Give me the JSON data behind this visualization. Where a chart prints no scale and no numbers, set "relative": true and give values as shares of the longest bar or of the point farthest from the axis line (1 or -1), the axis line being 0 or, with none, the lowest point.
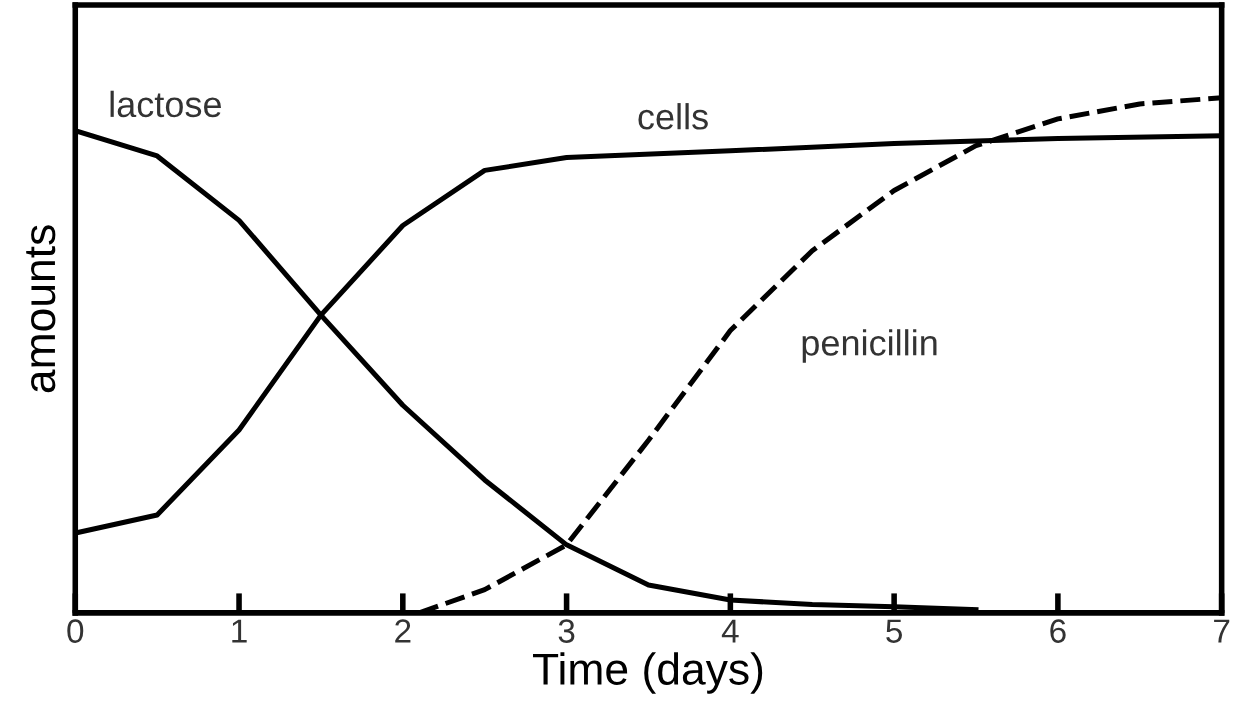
{
  "chart_data": {
    "type": "line",
    "relative": true,
    "xlabel": "Time (days)",
    "ylabel": "amounts",
    "xlim": [
      0,
      7
    ],
    "xticks": [
      0,
      1,
      2,
      3,
      4,
      5,
      6,
      7
    ],
    "grid": false,
    "legend": false,
    "marker": "none",
    "series": [
      {
        "name": "lactose",
        "color": "#000000",
        "line_style": "solid",
        "x": [
          0,
          0.5,
          1,
          1.5,
          2,
          2.5,
          3,
          3.5,
          4,
          4.5,
          5,
          5.5
        ],
        "values": [
          0.936,
          0.887,
          0.762,
          0.578,
          0.403,
          0.258,
          0.132,
          0.054,
          0.025,
          0.016,
          0.012,
          0.006
        ]
      },
      {
        "name": "cells",
        "color": "#000000",
        "line_style": "solid",
        "x": [
          0,
          0.5,
          1,
          1.5,
          2,
          2.5,
          3,
          4,
          5,
          6,
          7
        ],
        "values": [
          0.155,
          0.19,
          0.355,
          0.578,
          0.752,
          0.859,
          0.884,
          0.897,
          0.911,
          0.921,
          0.926
        ]
      },
      {
        "name": "penicillin",
        "color": "#000000",
        "line_style": "dashed",
        "x": [
          2.1,
          2.5,
          3,
          3.5,
          4,
          4.5,
          5,
          5.5,
          6,
          6.5,
          7
        ],
        "values": [
          0,
          0.045,
          0.132,
          0.335,
          0.548,
          0.703,
          0.82,
          0.907,
          0.959,
          0.988,
          1
        ]
      }
    ]
  }
}
